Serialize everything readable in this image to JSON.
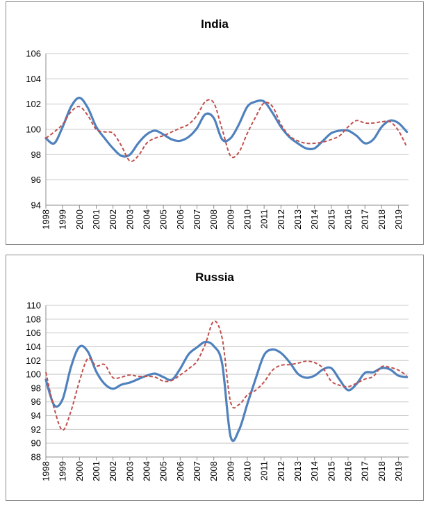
{
  "chart_data": [
    {
      "type": "line",
      "title": "India",
      "x": [
        1998,
        1999,
        2000,
        2001,
        2002,
        2003,
        2004,
        2005,
        2006,
        2007,
        2008,
        2009,
        2010,
        2011,
        2012,
        2013,
        2014,
        2015,
        2016,
        2017,
        2018,
        2019
      ],
      "x_range": [
        1998,
        2019.6
      ],
      "ylim": [
        94,
        106
      ],
      "yticks": [
        94,
        96,
        98,
        100,
        102,
        104,
        106
      ],
      "grid": "horizontal",
      "series": [
        {
          "style": "solid",
          "color": "#4f81bd",
          "points": [
            [
              1998.0,
              99.3
            ],
            [
              1998.5,
              98.9
            ],
            [
              1999.0,
              100.2
            ],
            [
              1999.5,
              101.8
            ],
            [
              2000.0,
              102.5
            ],
            [
              2000.5,
              101.7
            ],
            [
              2001.0,
              100.2
            ],
            [
              2001.5,
              99.3
            ],
            [
              2002.0,
              98.5
            ],
            [
              2002.5,
              97.9
            ],
            [
              2003.0,
              98.0
            ],
            [
              2003.5,
              98.9
            ],
            [
              2004.0,
              99.6
            ],
            [
              2004.5,
              99.9
            ],
            [
              2005.0,
              99.6
            ],
            [
              2005.5,
              99.2
            ],
            [
              2006.0,
              99.1
            ],
            [
              2006.5,
              99.4
            ],
            [
              2007.0,
              100.1
            ],
            [
              2007.5,
              101.2
            ],
            [
              2008.0,
              100.9
            ],
            [
              2008.5,
              99.2
            ],
            [
              2009.0,
              99.3
            ],
            [
              2009.5,
              100.4
            ],
            [
              2010.0,
              101.8
            ],
            [
              2010.5,
              102.2
            ],
            [
              2011.0,
              102.2
            ],
            [
              2011.5,
              101.3
            ],
            [
              2012.0,
              100.2
            ],
            [
              2012.5,
              99.4
            ],
            [
              2013.0,
              98.9
            ],
            [
              2013.5,
              98.5
            ],
            [
              2014.0,
              98.5
            ],
            [
              2014.5,
              99.1
            ],
            [
              2015.0,
              99.7
            ],
            [
              2015.5,
              99.9
            ],
            [
              2016.0,
              99.9
            ],
            [
              2016.5,
              99.5
            ],
            [
              2017.0,
              98.9
            ],
            [
              2017.5,
              99.2
            ],
            [
              2018.0,
              100.2
            ],
            [
              2018.5,
              100.7
            ],
            [
              2019.0,
              100.5
            ],
            [
              2019.5,
              99.8
            ]
          ]
        },
        {
          "style": "dashed",
          "color": "#c0504d",
          "points": [
            [
              1998.0,
              99.3
            ],
            [
              1998.5,
              99.8
            ],
            [
              1999.0,
              100.4
            ],
            [
              1999.5,
              101.4
            ],
            [
              2000.0,
              101.8
            ],
            [
              2000.5,
              101.1
            ],
            [
              2001.0,
              100.0
            ],
            [
              2001.5,
              99.8
            ],
            [
              2002.0,
              99.7
            ],
            [
              2002.5,
              98.7
            ],
            [
              2003.0,
              97.5
            ],
            [
              2003.5,
              97.9
            ],
            [
              2004.0,
              98.9
            ],
            [
              2004.5,
              99.3
            ],
            [
              2005.0,
              99.5
            ],
            [
              2005.5,
              99.8
            ],
            [
              2006.0,
              100.1
            ],
            [
              2006.5,
              100.4
            ],
            [
              2007.0,
              101.1
            ],
            [
              2007.5,
              102.2
            ],
            [
              2008.0,
              102.1
            ],
            [
              2008.5,
              100.0
            ],
            [
              2009.0,
              97.9
            ],
            [
              2009.5,
              98.2
            ],
            [
              2010.0,
              99.7
            ],
            [
              2010.5,
              101.0
            ],
            [
              2011.0,
              102.1
            ],
            [
              2011.5,
              101.8
            ],
            [
              2012.0,
              100.4
            ],
            [
              2012.5,
              99.5
            ],
            [
              2013.0,
              99.1
            ],
            [
              2013.5,
              98.9
            ],
            [
              2014.0,
              98.9
            ],
            [
              2014.5,
              99.0
            ],
            [
              2015.0,
              99.2
            ],
            [
              2015.5,
              99.5
            ],
            [
              2016.0,
              100.2
            ],
            [
              2016.5,
              100.7
            ],
            [
              2017.0,
              100.5
            ],
            [
              2017.5,
              100.5
            ],
            [
              2018.0,
              100.6
            ],
            [
              2018.5,
              100.6
            ],
            [
              2019.0,
              99.9
            ],
            [
              2019.5,
              98.6
            ]
          ]
        }
      ]
    },
    {
      "type": "line",
      "title": "Russia",
      "x": [
        1998,
        1999,
        2000,
        2001,
        2002,
        2003,
        2004,
        2005,
        2006,
        2007,
        2008,
        2009,
        2010,
        2011,
        2012,
        2013,
        2014,
        2015,
        2016,
        2017,
        2018,
        2019
      ],
      "x_range": [
        1998,
        2019.6
      ],
      "ylim": [
        88,
        110
      ],
      "yticks": [
        88,
        90,
        92,
        94,
        96,
        98,
        100,
        102,
        104,
        106,
        108,
        110
      ],
      "grid": "horizontal",
      "series": [
        {
          "style": "solid",
          "color": "#4f81bd",
          "points": [
            [
              1998.0,
              99.2
            ],
            [
              1998.5,
              95.5
            ],
            [
              1999.0,
              96.4
            ],
            [
              1999.5,
              101.1
            ],
            [
              2000.0,
              104.0
            ],
            [
              2000.5,
              103.3
            ],
            [
              2001.0,
              100.4
            ],
            [
              2001.5,
              98.6
            ],
            [
              2002.0,
              97.9
            ],
            [
              2002.5,
              98.5
            ],
            [
              2003.0,
              98.8
            ],
            [
              2003.5,
              99.3
            ],
            [
              2004.0,
              99.8
            ],
            [
              2004.5,
              100.1
            ],
            [
              2005.0,
              99.6
            ],
            [
              2005.5,
              99.2
            ],
            [
              2006.0,
              100.8
            ],
            [
              2006.5,
              102.9
            ],
            [
              2007.0,
              103.9
            ],
            [
              2007.5,
              104.7
            ],
            [
              2008.0,
              104.1
            ],
            [
              2008.5,
              101.5
            ],
            [
              2009.0,
              91.0
            ],
            [
              2009.5,
              91.9
            ],
            [
              2010.0,
              95.7
            ],
            [
              2010.5,
              99.4
            ],
            [
              2011.0,
              102.8
            ],
            [
              2011.5,
              103.6
            ],
            [
              2012.0,
              103.1
            ],
            [
              2012.5,
              101.8
            ],
            [
              2013.0,
              100.1
            ],
            [
              2013.5,
              99.5
            ],
            [
              2014.0,
              99.8
            ],
            [
              2014.5,
              100.7
            ],
            [
              2015.0,
              100.9
            ],
            [
              2015.5,
              99.2
            ],
            [
              2016.0,
              97.7
            ],
            [
              2016.5,
              98.6
            ],
            [
              2017.0,
              100.2
            ],
            [
              2017.5,
              100.3
            ],
            [
              2018.0,
              100.9
            ],
            [
              2018.5,
              100.7
            ],
            [
              2019.0,
              99.8
            ],
            [
              2019.5,
              99.6
            ]
          ]
        },
        {
          "style": "dashed",
          "color": "#c0504d",
          "points": [
            [
              1998.0,
              100.3
            ],
            [
              1998.5,
              95.0
            ],
            [
              1999.0,
              91.9
            ],
            [
              1999.5,
              94.7
            ],
            [
              2000.0,
              99.0
            ],
            [
              2000.5,
              102.3
            ],
            [
              2001.0,
              101.2
            ],
            [
              2001.5,
              101.4
            ],
            [
              2002.0,
              99.5
            ],
            [
              2002.5,
              99.6
            ],
            [
              2003.0,
              99.9
            ],
            [
              2003.5,
              99.7
            ],
            [
              2004.0,
              99.7
            ],
            [
              2004.5,
              99.6
            ],
            [
              2005.0,
              99.0
            ],
            [
              2005.5,
              99.1
            ],
            [
              2006.0,
              99.9
            ],
            [
              2006.5,
              100.8
            ],
            [
              2007.0,
              101.9
            ],
            [
              2007.5,
              104.4
            ],
            [
              2008.0,
              107.7
            ],
            [
              2008.5,
              105.2
            ],
            [
              2009.0,
              96.0
            ],
            [
              2009.5,
              95.6
            ],
            [
              2010.0,
              97.0
            ],
            [
              2010.5,
              97.7
            ],
            [
              2011.0,
              98.9
            ],
            [
              2011.5,
              100.6
            ],
            [
              2012.0,
              101.3
            ],
            [
              2012.5,
              101.4
            ],
            [
              2013.0,
              101.6
            ],
            [
              2013.5,
              101.9
            ],
            [
              2014.0,
              101.7
            ],
            [
              2014.5,
              100.9
            ],
            [
              2015.0,
              99.0
            ],
            [
              2015.5,
              98.4
            ],
            [
              2016.0,
              98.2
            ],
            [
              2016.5,
              98.7
            ],
            [
              2017.0,
              99.3
            ],
            [
              2017.5,
              99.7
            ],
            [
              2018.0,
              101.1
            ],
            [
              2018.5,
              101.0
            ],
            [
              2019.0,
              100.6
            ],
            [
              2019.5,
              99.8
            ]
          ]
        }
      ]
    }
  ]
}
